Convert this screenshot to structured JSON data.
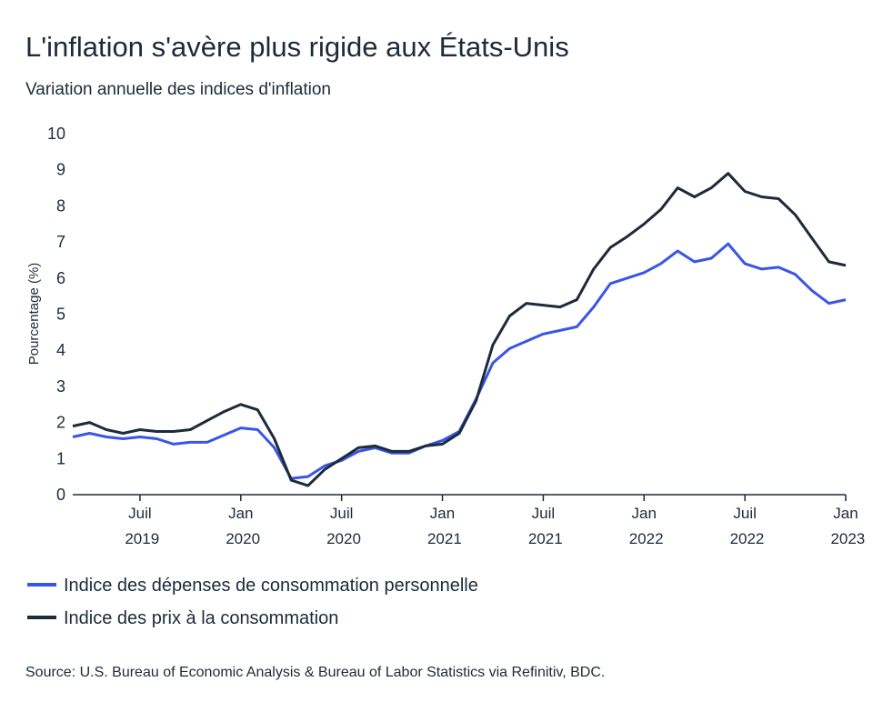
{
  "chart_data": {
    "type": "line",
    "title": "L'inflation s'avère plus rigide aux États-Unis",
    "subtitle": "Variation annuelle des indices d'inflation",
    "y_label": "Pourcentage (%)",
    "source": "Source: U.S. Bureau of Economic Analysis & Bureau of Labor Statistics via Refinitiv, BDC.",
    "x": [
      "2019-03",
      "2019-04",
      "2019-05",
      "2019-06",
      "2019-07",
      "2019-08",
      "2019-09",
      "2019-10",
      "2019-11",
      "2019-12",
      "2020-01",
      "2020-02",
      "2020-03",
      "2020-04",
      "2020-05",
      "2020-06",
      "2020-07",
      "2020-08",
      "2020-09",
      "2020-10",
      "2020-11",
      "2020-12",
      "2021-01",
      "2021-02",
      "2021-03",
      "2021-04",
      "2021-05",
      "2021-06",
      "2021-07",
      "2021-08",
      "2021-09",
      "2021-10",
      "2021-11",
      "2021-12",
      "2022-01",
      "2022-02",
      "2022-03",
      "2022-04",
      "2022-05",
      "2022-06",
      "2022-07",
      "2022-08",
      "2022-09",
      "2022-10",
      "2022-11",
      "2022-12",
      "2023-01"
    ],
    "series": [
      {
        "name": "Indice des dépenses de consommation personnelle",
        "color": "#3b55e6",
        "values": [
          1.6,
          1.7,
          1.6,
          1.55,
          1.6,
          1.55,
          1.4,
          1.45,
          1.45,
          1.65,
          1.85,
          1.8,
          1.3,
          0.45,
          0.5,
          0.8,
          0.95,
          1.2,
          1.3,
          1.15,
          1.15,
          1.35,
          1.5,
          1.75,
          2.65,
          3.65,
          4.05,
          4.25,
          4.45,
          4.55,
          4.65,
          5.2,
          5.85,
          6.0,
          6.15,
          6.4,
          6.75,
          6.45,
          6.55,
          6.95,
          6.4,
          6.25,
          6.3,
          6.1,
          5.65,
          5.3,
          5.4
        ]
      },
      {
        "name": "Indice des prix à la consommation",
        "color": "#1c2b39",
        "values": [
          1.9,
          2.0,
          1.8,
          1.7,
          1.8,
          1.75,
          1.75,
          1.8,
          2.05,
          2.3,
          2.5,
          2.35,
          1.55,
          0.4,
          0.25,
          0.7,
          1.0,
          1.3,
          1.35,
          1.2,
          1.2,
          1.35,
          1.4,
          1.7,
          2.6,
          4.15,
          4.95,
          5.3,
          5.25,
          5.2,
          5.4,
          6.25,
          6.85,
          7.15,
          7.5,
          7.9,
          8.5,
          8.25,
          8.5,
          8.9,
          8.4,
          8.25,
          8.2,
          7.75,
          7.1,
          6.45,
          6.35
        ]
      }
    ],
    "xlim": [
      "2019-03",
      "2023-01"
    ],
    "xticks": [
      {
        "value": "2019-07",
        "label": "Juil 2019"
      },
      {
        "value": "2020-01",
        "label": "Jan 2020"
      },
      {
        "value": "2020-07",
        "label": "Juil 2020"
      },
      {
        "value": "2021-01",
        "label": "Jan 2021"
      },
      {
        "value": "2021-07",
        "label": "Juil 2021"
      },
      {
        "value": "2022-01",
        "label": "Jan 2022"
      },
      {
        "value": "2022-07",
        "label": "Juil 2022"
      },
      {
        "value": "2023-01",
        "label": "Jan 2023"
      }
    ],
    "ylim": [
      0,
      10
    ],
    "yticks": [
      0,
      1,
      2,
      3,
      4,
      5,
      6,
      7,
      8,
      9,
      10
    ],
    "grid": false
  }
}
